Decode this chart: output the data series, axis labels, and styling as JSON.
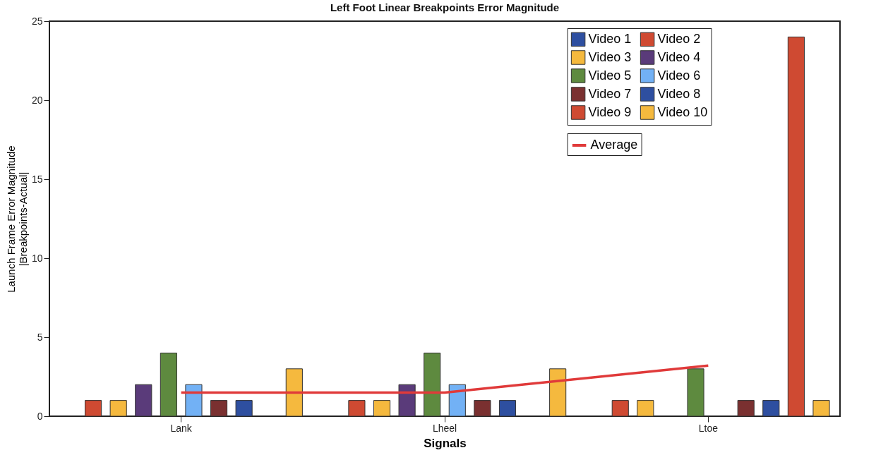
{
  "chart_data": {
    "type": "bar",
    "title": "Left Foot Linear Breakpoints Error Magnitude",
    "xlabel": "Signals",
    "ylabel": "Launch Frame Error Magnitude\n|Breakpoints-Actual|",
    "categories": [
      "Lank",
      "Lheel",
      "Ltoe"
    ],
    "series": [
      {
        "name": "Video 1",
        "color": "#2e4fa0",
        "values": [
          null,
          null,
          null
        ]
      },
      {
        "name": "Video 2",
        "color": "#cf4a32",
        "values": [
          1,
          1,
          1
        ]
      },
      {
        "name": "Video 3",
        "color": "#f5b93e",
        "values": [
          1,
          1,
          1
        ]
      },
      {
        "name": "Video 4",
        "color": "#5a3b7a",
        "values": [
          2,
          2,
          null
        ]
      },
      {
        "name": "Video 5",
        "color": "#5e8a3f",
        "values": [
          4,
          4,
          3
        ]
      },
      {
        "name": "Video 6",
        "color": "#72b1f5",
        "values": [
          2,
          2,
          null
        ]
      },
      {
        "name": "Video 7",
        "color": "#7a3030",
        "values": [
          1,
          1,
          1
        ]
      },
      {
        "name": "Video 8",
        "color": "#2e4fa0",
        "values": [
          1,
          1,
          1
        ]
      },
      {
        "name": "Video 9",
        "color": "#cf4a32",
        "values": [
          null,
          null,
          24
        ]
      },
      {
        "name": "Video 10",
        "color": "#f5b93e",
        "values": [
          3,
          3,
          1
        ]
      },
      {
        "name": "Average",
        "type": "line",
        "color": "#e03a3a",
        "values": [
          1.5,
          1.5,
          3.2
        ]
      }
    ],
    "ylim": [
      0,
      25
    ],
    "yticks": [
      0,
      5,
      10,
      15,
      20,
      25
    ],
    "grid": false,
    "legend": "top right"
  }
}
